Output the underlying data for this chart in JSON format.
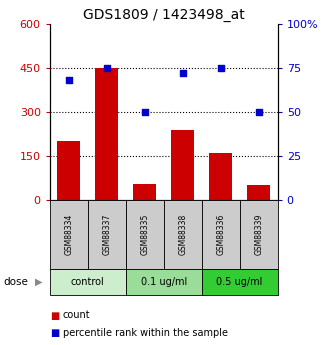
{
  "title": "GDS1809 / 1423498_at",
  "categories": [
    "GSM88334",
    "GSM88337",
    "GSM88335",
    "GSM88338",
    "GSM88336",
    "GSM88339"
  ],
  "bar_values": [
    200,
    450,
    55,
    240,
    160,
    50
  ],
  "scatter_values": [
    68,
    75,
    50,
    72,
    75,
    50
  ],
  "bar_color": "#cc0000",
  "scatter_color": "#0000cc",
  "ylim_left": [
    0,
    600
  ],
  "ylim_right": [
    0,
    100
  ],
  "yticks_left": [
    0,
    150,
    300,
    450,
    600
  ],
  "yticks_right": [
    0,
    25,
    50,
    75,
    100
  ],
  "ytick_labels_left": [
    "0",
    "150",
    "300",
    "450",
    "600"
  ],
  "ytick_labels_right": [
    "0",
    "25",
    "50",
    "75",
    "100%"
  ],
  "dose_groups": [
    {
      "label": "control",
      "indices": [
        0,
        1
      ],
      "color": "#cceecc"
    },
    {
      "label": "0.1 ug/ml",
      "indices": [
        2,
        3
      ],
      "color": "#99dd99"
    },
    {
      "label": "0.5 ug/ml",
      "indices": [
        4,
        5
      ],
      "color": "#33cc33"
    }
  ],
  "dose_label": "dose",
  "legend_count": "count",
  "legend_percentile": "percentile rank within the sample",
  "tick_color_left": "#cc0000",
  "tick_color_right": "#0000cc",
  "sample_box_color": "#cccccc",
  "bar_width": 0.6,
  "hline_values": [
    150,
    300,
    450
  ],
  "hline_style": "dotted"
}
